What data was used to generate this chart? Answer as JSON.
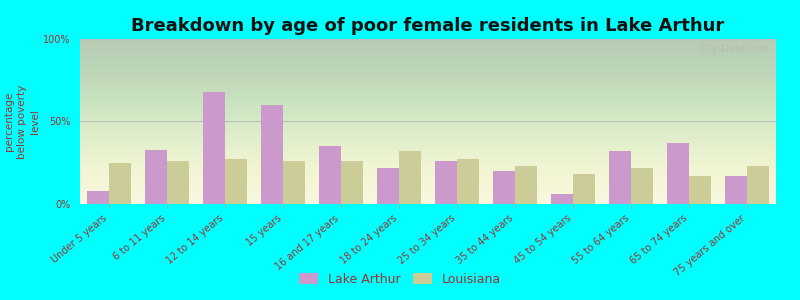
{
  "title": "Breakdown by age of poor female residents in Lake Arthur",
  "ylabel": "percentage\nbelow poverty\nlevel",
  "categories": [
    "Under 5 years",
    "6 to 11 years",
    "12 to 14 years",
    "15 years",
    "16 and 17 years",
    "18 to 24 years",
    "25 to 34 years",
    "35 to 44 years",
    "45 to 54 years",
    "55 to 64 years",
    "65 to 74 years",
    "75 years and over"
  ],
  "lake_arthur": [
    8,
    33,
    68,
    60,
    35,
    22,
    26,
    20,
    6,
    32,
    37,
    17
  ],
  "louisiana": [
    25,
    26,
    27,
    26,
    26,
    32,
    27,
    23,
    18,
    22,
    17,
    23
  ],
  "lake_arthur_color": "#cc99cc",
  "louisiana_color": "#cccc99",
  "background_color": "#00ffff",
  "plot_bg_color": "#f5f5e0",
  "ylim": [
    0,
    100
  ],
  "yticks": [
    0,
    50,
    100
  ],
  "ytick_labels": [
    "0%",
    "50%",
    "100%"
  ],
  "title_fontsize": 13,
  "axis_label_fontsize": 7.5,
  "tick_fontsize": 7,
  "bar_width": 0.38,
  "legend_labels": [
    "Lake Arthur",
    "Louisiana"
  ],
  "watermark": "City-Data.com",
  "text_color": "#993333"
}
